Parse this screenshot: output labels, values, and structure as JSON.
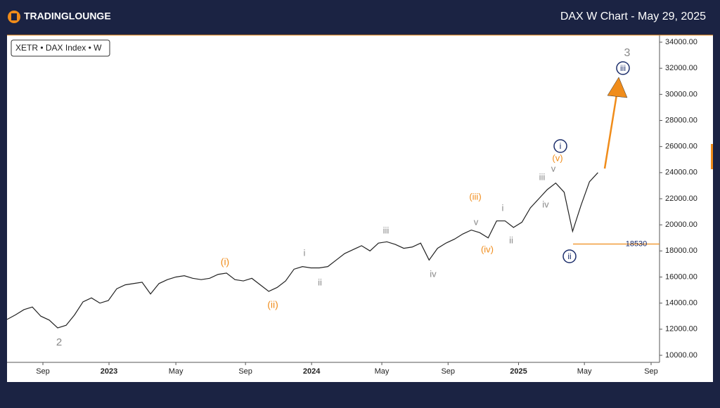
{
  "header": {
    "brand": "TradingLounge",
    "title": "DAX W Chart - May 29, 2025"
  },
  "chart_data": {
    "type": "line",
    "legend_text": "XETR • DAX Index • W",
    "color": "#222222",
    "categories": [
      null,
      null,
      null,
      null,
      null,
      null,
      null,
      null,
      null,
      null,
      null,
      null,
      null,
      null,
      null,
      null,
      null,
      null,
      null,
      null,
      null,
      null,
      null,
      null,
      null,
      null,
      null,
      null,
      null,
      null,
      null,
      null,
      null,
      null,
      null,
      null,
      null,
      null,
      null,
      null,
      null,
      null,
      null,
      null,
      null,
      null,
      null,
      null,
      null,
      null,
      null,
      null,
      null,
      null,
      null,
      null,
      null,
      null,
      null,
      null,
      null,
      null,
      null,
      null,
      null,
      null,
      null,
      null,
      null,
      null,
      null
    ],
    "values": [
      12750,
      13100,
      13500,
      13700,
      13000,
      12700,
      12100,
      12300,
      13100,
      14100,
      14400,
      14000,
      14200,
      15100,
      15400,
      15500,
      15600,
      14700,
      15500,
      15800,
      16000,
      16100,
      15900,
      15800,
      15900,
      16200,
      16300,
      15800,
      15700,
      15900,
      15400,
      14900,
      15200,
      15700,
      16600,
      16800,
      16700,
      16700,
      16800,
      17300,
      17800,
      18100,
      18400,
      18000,
      18600,
      18700,
      18500,
      18200,
      18300,
      18600,
      17300,
      18200,
      18600,
      18900,
      19300,
      19600,
      19400,
      19000,
      20300,
      20300,
      19800,
      20200,
      21300,
      22000,
      22700,
      23200,
      22500,
      19500,
      21500,
      23300,
      24000
    ],
    "xlim": [
      0,
      77.3
    ],
    "xticks": [
      {
        "value": 4.25,
        "label": "Sep"
      },
      {
        "value": 12.08,
        "label": "2023"
      },
      {
        "value": 20,
        "label": "May"
      },
      {
        "value": 28.25,
        "label": "Sep"
      },
      {
        "value": 36.08,
        "label": "2024"
      },
      {
        "value": 44.4,
        "label": "May"
      },
      {
        "value": 52.25,
        "label": "Sep"
      },
      {
        "value": 60.6,
        "label": "2025"
      },
      {
        "value": 68.4,
        "label": "May"
      },
      {
        "value": 76.3,
        "label": "Sep"
      }
    ],
    "ylim": [
      9460,
      34540
    ],
    "yticks": [
      {
        "value": 10000,
        "label": "10000.00"
      },
      {
        "value": 12000,
        "label": "12000.00"
      },
      {
        "value": 14000,
        "label": "14000.00"
      },
      {
        "value": 16000,
        "label": "16000.00"
      },
      {
        "value": 18000,
        "label": "18000.00"
      },
      {
        "value": 20000,
        "label": "20000.00"
      },
      {
        "value": 22000,
        "label": "22000.00"
      },
      {
        "value": 24000,
        "label": "24000.00"
      },
      {
        "value": 26000,
        "label": "26000.00"
      },
      {
        "value": 28000,
        "label": "28000.00"
      },
      {
        "value": 30000,
        "label": "30000.00"
      },
      {
        "value": 32000,
        "label": "32000.00"
      },
      {
        "value": 34000,
        "label": "34000.00"
      }
    ],
    "level": {
      "value": 18530,
      "color": "#f08c1a"
    },
    "annotations": [
      "2",
      "(i)",
      "(ii)",
      "i",
      "ii",
      "iii",
      "iv",
      "v",
      "(iii)",
      "(iv)",
      "i",
      "ii",
      "iii",
      "iv",
      "v",
      "(v)",
      "i",
      "ii",
      "iii",
      "3"
    ]
  }
}
